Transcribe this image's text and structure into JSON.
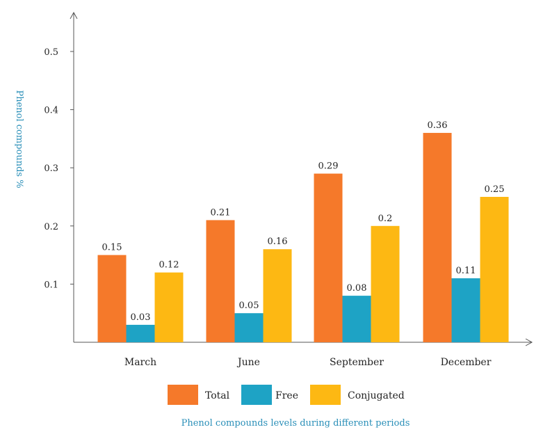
{
  "chart_data": {
    "type": "bar",
    "categories": [
      "March",
      "June",
      "September",
      "December"
    ],
    "series": [
      {
        "name": "Total",
        "values": [
          0.15,
          0.21,
          0.29,
          0.36
        ],
        "color": "#f5792a"
      },
      {
        "name": "Free",
        "values": [
          0.03,
          0.05,
          0.08,
          0.11
        ],
        "color": "#1ea3c5"
      },
      {
        "name": "Conjugated",
        "values": [
          0.12,
          0.16,
          0.2,
          0.25
        ],
        "color": "#fdb813"
      }
    ],
    "ylabel": "Phenol compounds %",
    "caption": "Phenol compounds levels during different periods",
    "yticks": [
      0.1,
      0.2,
      0.3,
      0.4,
      0.5
    ],
    "ylim": [
      0,
      0.5
    ],
    "grid": false,
    "legend_position": "bottom",
    "caption_color": "#2a8fb8",
    "axis_color": "#555555"
  }
}
